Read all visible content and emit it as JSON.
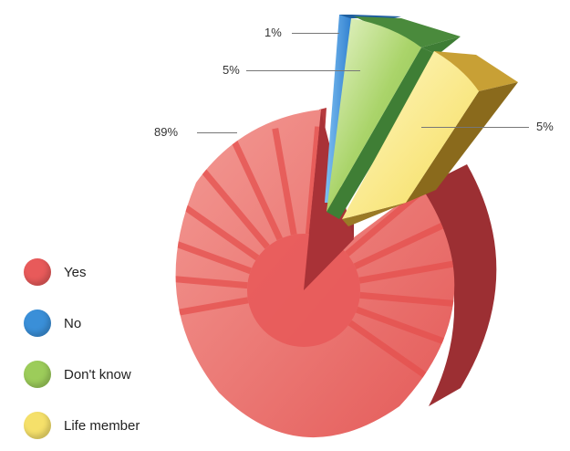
{
  "chart_data": {
    "type": "pie",
    "categories": [
      "Yes",
      "No",
      "Don't know",
      "Life member"
    ],
    "values": [
      89,
      1,
      5,
      5
    ],
    "labels": [
      "89%",
      "1%",
      "5%",
      "5%"
    ],
    "legend_position": "bottom-left",
    "colors": [
      "#e85a5a",
      "#3a8fd8",
      "#9ccc5a",
      "#f5e06a"
    ]
  }
}
